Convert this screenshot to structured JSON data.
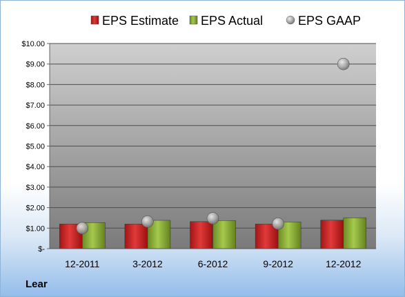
{
  "chart_data": {
    "type": "bar",
    "title": "",
    "categories": [
      "12-2011",
      "3-2012",
      "6-2012",
      "9-2012",
      "12-2012"
    ],
    "series": [
      {
        "name": "EPS Estimate",
        "kind": "bar",
        "color": "#d42a2a",
        "values": [
          1.2,
          1.2,
          1.32,
          1.2,
          1.39
        ]
      },
      {
        "name": "EPS Actual",
        "kind": "bar",
        "color": "#8fb33d",
        "values": [
          1.27,
          1.38,
          1.37,
          1.3,
          1.5
        ]
      },
      {
        "name": "EPS GAAP",
        "kind": "marker",
        "color": "#a6a6a6",
        "values": [
          1.0,
          1.32,
          1.48,
          1.22,
          9.0
        ]
      }
    ],
    "ylim": [
      0,
      10
    ],
    "y_ticks": [
      {
        "value": 10,
        "label": "$10.00"
      },
      {
        "value": 9,
        "label": "$9.00"
      },
      {
        "value": 8,
        "label": "$8.00"
      },
      {
        "value": 7,
        "label": "$7.00"
      },
      {
        "value": 6,
        "label": "$6.00"
      },
      {
        "value": 5,
        "label": "$5.00"
      },
      {
        "value": 4,
        "label": "$4.00"
      },
      {
        "value": 3,
        "label": "$3.00"
      },
      {
        "value": 2,
        "label": "$2.00"
      },
      {
        "value": 1,
        "label": "$1.00"
      },
      {
        "value": 0,
        "label": "$-"
      }
    ],
    "grid": true,
    "legend_position": "top"
  },
  "footer": {
    "company": "Lear"
  }
}
